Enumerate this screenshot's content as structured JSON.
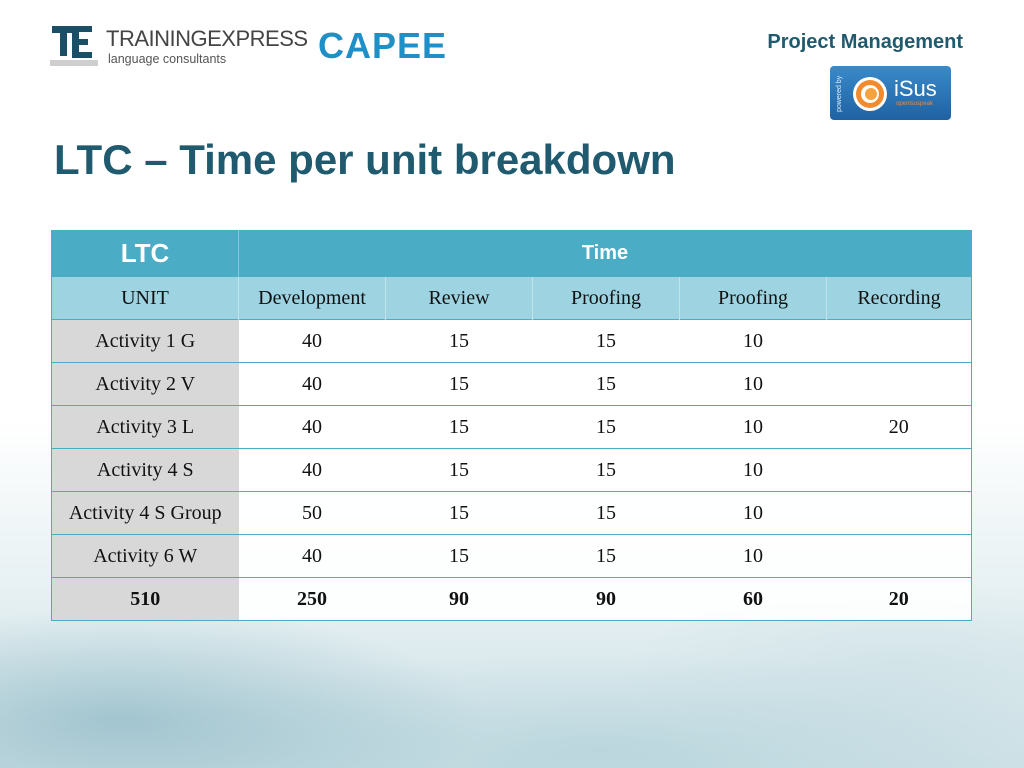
{
  "header": {
    "logo_te": {
      "wordmark": "TRAININGEXPRESS",
      "tagline": "language consultants"
    },
    "logo_capee": "CAPEE",
    "section": "Project Management",
    "logo_isus": {
      "powered": "powered by",
      "word": "iSus",
      "sub": "openisuspeak"
    }
  },
  "title": "LTC – Time per unit breakdown",
  "table": {
    "corner": "LTC",
    "group_header": "Time",
    "columns": [
      "UNIT",
      "Development",
      "Review",
      "Proofing",
      "Proofing",
      "Recording"
    ],
    "rows": [
      [
        "Activity 1 G",
        "40",
        "15",
        "15",
        "10",
        ""
      ],
      [
        "Activity 2 V",
        "40",
        "15",
        "15",
        "10",
        ""
      ],
      [
        "Activity 3 L",
        "40",
        "15",
        "15",
        "10",
        "20"
      ],
      [
        "Activity 4 S",
        "40",
        "15",
        "15",
        "10",
        ""
      ],
      [
        "Activity 4 S Group",
        "50",
        "15",
        "15",
        "10",
        ""
      ],
      [
        "Activity 6 W",
        "40",
        "15",
        "15",
        "10",
        ""
      ]
    ],
    "total": [
      "510",
      "250",
      "90",
      "90",
      "60",
      "20"
    ]
  },
  "colors": {
    "accent": "#4bacc6",
    "accent_light": "#9ed3e2",
    "title": "#1f5a6e",
    "first_col": "#d8d8d8"
  }
}
